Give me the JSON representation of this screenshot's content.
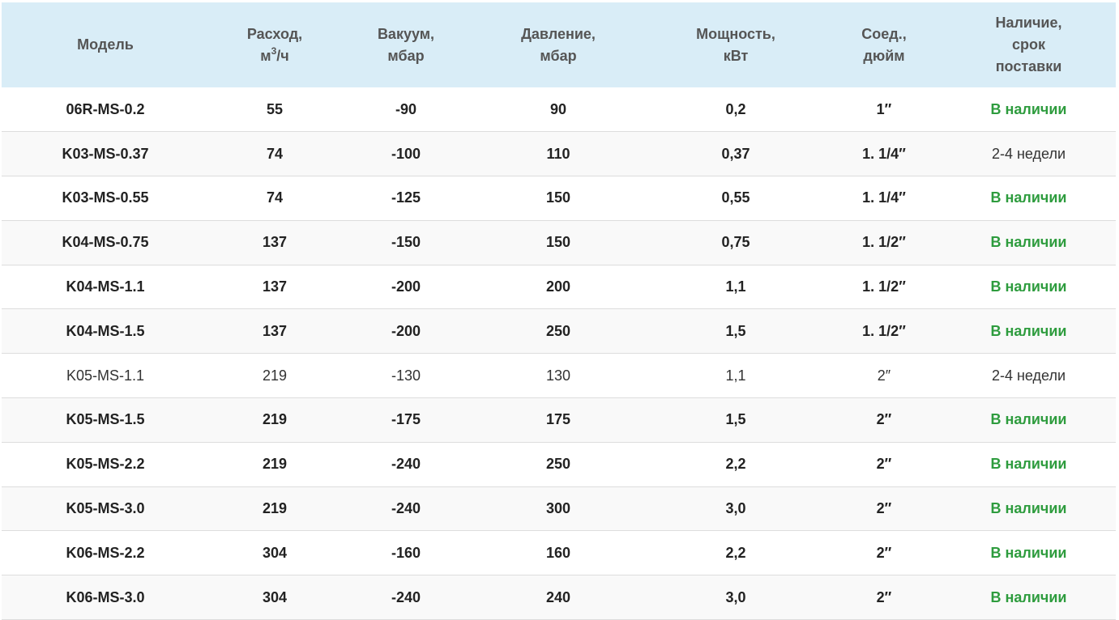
{
  "table": {
    "headers": {
      "model": [
        "Модель"
      ],
      "flow": [
        "Расход,",
        "м",
        "3",
        "/ч"
      ],
      "vacuum": [
        "Вакуум,",
        "мбар"
      ],
      "pressure": [
        "Давление,",
        "мбар"
      ],
      "power": [
        "Мощность,",
        "кВт"
      ],
      "connection": [
        "Соед.,",
        "дюйм"
      ],
      "availability": [
        "Наличие,",
        "срок",
        "поставки"
      ]
    },
    "colors": {
      "header_bg": "#d9edf7",
      "in_stock": "#2e9c3e"
    },
    "rows": [
      {
        "model": "06R-MS-0.2",
        "flow": "55",
        "vacuum": "-90",
        "pressure": "90",
        "power": "0,2",
        "connection": "1″",
        "availability": "В наличии",
        "status": "in",
        "bold": true
      },
      {
        "model": "K03-MS-0.37",
        "flow": "74",
        "vacuum": "-100",
        "pressure": "110",
        "power": "0,37",
        "connection": "1. 1/4″",
        "availability": "2-4 недели",
        "status": "wait",
        "bold": true
      },
      {
        "model": "K03-MS-0.55",
        "flow": "74",
        "vacuum": "-125",
        "pressure": "150",
        "power": "0,55",
        "connection": "1. 1/4″",
        "availability": "В наличии",
        "status": "in",
        "bold": true
      },
      {
        "model": "K04-MS-0.75",
        "flow": "137",
        "vacuum": "-150",
        "pressure": "150",
        "power": "0,75",
        "connection": "1. 1/2″",
        "availability": "В наличии",
        "status": "in",
        "bold": true
      },
      {
        "model": "K04-MS-1.1",
        "flow": "137",
        "vacuum": "-200",
        "pressure": "200",
        "power": "1,1",
        "connection": "1. 1/2″",
        "availability": "В наличии",
        "status": "in",
        "bold": true
      },
      {
        "model": "K04-MS-1.5",
        "flow": "137",
        "vacuum": "-200",
        "pressure": "250",
        "power": "1,5",
        "connection": "1. 1/2″",
        "availability": "В наличии",
        "status": "in",
        "bold": true
      },
      {
        "model": "K05-MS-1.1",
        "flow": "219",
        "vacuum": "-130",
        "pressure": "130",
        "power": "1,1",
        "connection": "2″",
        "availability": "2-4 недели",
        "status": "wait",
        "bold": false
      },
      {
        "model": "K05-MS-1.5",
        "flow": "219",
        "vacuum": "-175",
        "pressure": "175",
        "power": "1,5",
        "connection": "2″",
        "availability": "В наличии",
        "status": "in",
        "bold": true
      },
      {
        "model": "K05-MS-2.2",
        "flow": "219",
        "vacuum": "-240",
        "pressure": "250",
        "power": "2,2",
        "connection": "2″",
        "availability": "В наличии",
        "status": "in",
        "bold": true
      },
      {
        "model": "K05-MS-3.0",
        "flow": "219",
        "vacuum": "-240",
        "pressure": "300",
        "power": "3,0",
        "connection": "2″",
        "availability": "В наличии",
        "status": "in",
        "bold": true
      },
      {
        "model": "K06-MS-2.2",
        "flow": "304",
        "vacuum": "-160",
        "pressure": "160",
        "power": "2,2",
        "connection": "2″",
        "availability": "В наличии",
        "status": "in",
        "bold": true
      },
      {
        "model": "K06-MS-3.0",
        "flow": "304",
        "vacuum": "-240",
        "pressure": "240",
        "power": "3,0",
        "connection": "2″",
        "availability": "В наличии",
        "status": "in",
        "bold": true
      }
    ]
  }
}
